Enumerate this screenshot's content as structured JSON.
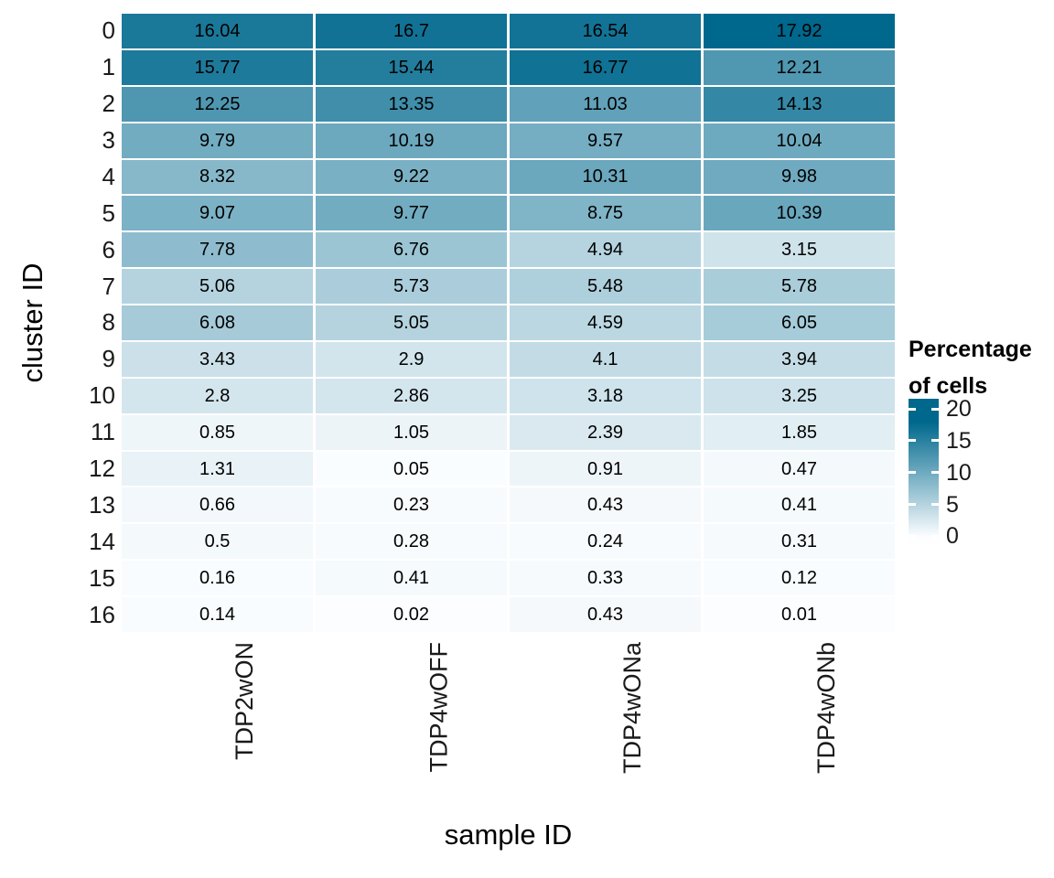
{
  "chart_data": {
    "type": "heatmap",
    "xlabel": "sample ID",
    "ylabel": "cluster ID",
    "categories_x": [
      "TDP2wON",
      "TDP4wOFF",
      "TDP4wONa",
      "TDP4wONb"
    ],
    "categories_y": [
      "0",
      "1",
      "2",
      "3",
      "4",
      "5",
      "6",
      "7",
      "8",
      "9",
      "10",
      "11",
      "12",
      "13",
      "14",
      "15",
      "16"
    ],
    "values": [
      [
        16.04,
        16.7,
        16.54,
        17.92
      ],
      [
        15.77,
        15.44,
        16.77,
        12.21
      ],
      [
        12.25,
        13.35,
        11.03,
        14.13
      ],
      [
        9.79,
        10.19,
        9.57,
        10.04
      ],
      [
        8.32,
        9.22,
        10.31,
        9.98
      ],
      [
        9.07,
        9.77,
        8.75,
        10.39
      ],
      [
        7.78,
        6.76,
        4.94,
        3.15
      ],
      [
        5.06,
        5.73,
        5.48,
        5.78
      ],
      [
        6.08,
        5.05,
        4.59,
        6.05
      ],
      [
        3.43,
        2.9,
        4.1,
        3.94
      ],
      [
        2.8,
        2.86,
        3.18,
        3.25
      ],
      [
        0.85,
        1.05,
        2.39,
        1.85
      ],
      [
        1.31,
        0.05,
        0.91,
        0.47
      ],
      [
        0.66,
        0.23,
        0.43,
        0.41
      ],
      [
        0.5,
        0.28,
        0.24,
        0.31
      ],
      [
        0.16,
        0.41,
        0.33,
        0.12
      ],
      [
        0.14,
        0.02,
        0.43,
        0.01
      ]
    ],
    "legend": {
      "title_lines": [
        "Percentage",
        "of cells"
      ],
      "ticks": [
        20,
        15,
        10,
        5,
        0
      ]
    },
    "colors": {
      "low": "#FBFDFF",
      "high": "#00688D",
      "max_value": 17.92,
      "cell_text": "#000000"
    },
    "legend_position": "right",
    "grid": false
  }
}
